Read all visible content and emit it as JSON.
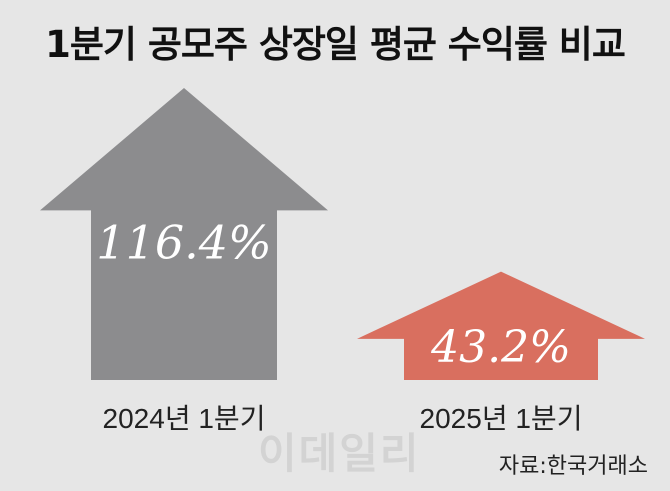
{
  "chart_data": {
    "type": "bar",
    "title": "1분기 공모주 상장일 평균 수익률 비교",
    "categories": [
      "2024년 1분기",
      "2025년 1분기"
    ],
    "values": [
      116.4,
      43.2
    ],
    "value_labels": [
      "116.4%",
      "43.2%"
    ],
    "unit": "%",
    "colors": [
      "#8c8c8e",
      "#d96f5f"
    ],
    "xlabel": "",
    "ylabel": "",
    "ylim": [
      0,
      116.4
    ]
  },
  "source": "자료:한국거래소",
  "watermark": "이데일리"
}
